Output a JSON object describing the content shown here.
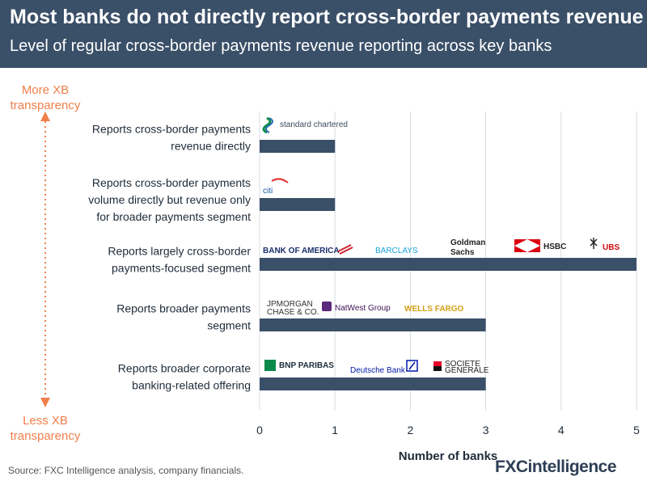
{
  "title": "Most banks do not directly report cross-border payments revenue",
  "subtitle": "Level of regular cross-border payments revenue reporting across key banks",
  "axis_top_label": [
    "More XB",
    "transparency"
  ],
  "axis_bottom_label": [
    "Less XB",
    "transparency"
  ],
  "source": "Source: FXC Intelligence analysis, company financials.",
  "brand": "FXCintelligence",
  "colors": {
    "bar": "#3a4f68",
    "accent": "#f07f4a",
    "header": "#3a4f68"
  },
  "chart_data": {
    "type": "bar",
    "orientation": "horizontal",
    "categories": [
      [
        "Reports cross-border payments",
        "revenue directly"
      ],
      [
        "Reports cross-border payments",
        "volume directly but revenue only",
        "for broader payments segment"
      ],
      [
        "Reports largely cross-border",
        "payments-focused segment"
      ],
      [
        "Reports broader payments",
        "segment"
      ],
      [
        "Reports broader corporate",
        "banking-related offering"
      ]
    ],
    "values": [
      1,
      1,
      5,
      3,
      3
    ],
    "banks": [
      [
        "standard chartered"
      ],
      [
        "citi"
      ],
      [
        "BANK OF AMERICA",
        "BARCLAYS",
        "Goldman Sachs",
        "HSBC",
        "UBS"
      ],
      [
        "JPMORGAN CHASE & CO.",
        "NatWest Group",
        "WELLS FARGO"
      ],
      [
        "BNP PARIBAS",
        "Deutsche Bank",
        "SOCIETE GENERALE"
      ]
    ],
    "xlabel": "Number of banks",
    "xlim": [
      0,
      5
    ],
    "xticks": [
      0,
      1,
      2,
      3,
      4,
      5
    ],
    "grid": true
  }
}
